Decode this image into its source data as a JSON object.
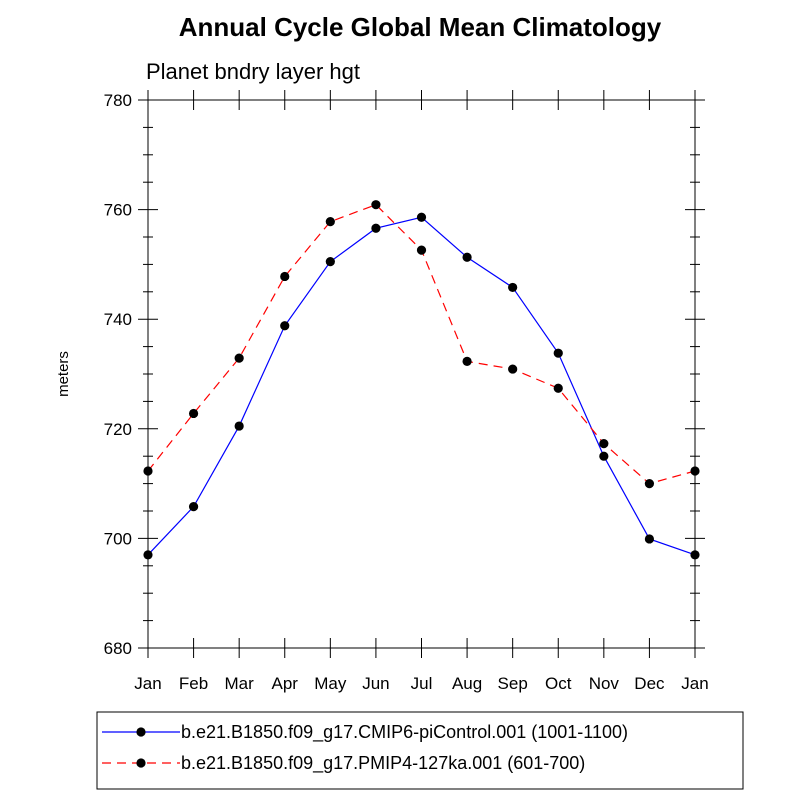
{
  "chart_data": {
    "type": "line",
    "title": "Annual Cycle Global Mean Climatology",
    "subtitle": "Planet bndry layer hgt",
    "xlabel": "",
    "ylabel": "meters",
    "categories": [
      "Jan",
      "Feb",
      "Mar",
      "Apr",
      "May",
      "Jun",
      "Jul",
      "Aug",
      "Sep",
      "Oct",
      "Nov",
      "Dec",
      "Jan"
    ],
    "ylim": [
      680,
      780
    ],
    "yticks": [
      680,
      700,
      720,
      740,
      760,
      780
    ],
    "legend_position": "bottom",
    "series": [
      {
        "name": "b.e21.B1850.f09_g17.CMIP6-piControl.001 (1001-1100)",
        "color": "#0000ff",
        "dash": "solid",
        "values": [
          697.0,
          705.8,
          720.5,
          738.8,
          750.5,
          756.6,
          758.6,
          751.3,
          745.8,
          733.8,
          715.0,
          699.9,
          697.0
        ]
      },
      {
        "name": "b.e21.B1850.f09_g17.PMIP4-127ka.001 (601-700)",
        "color": "#ff0000",
        "dash": "dashed",
        "values": [
          712.3,
          722.8,
          732.9,
          747.8,
          757.8,
          760.9,
          752.6,
          732.3,
          730.9,
          727.4,
          717.3,
          710.0,
          712.3
        ]
      }
    ]
  }
}
